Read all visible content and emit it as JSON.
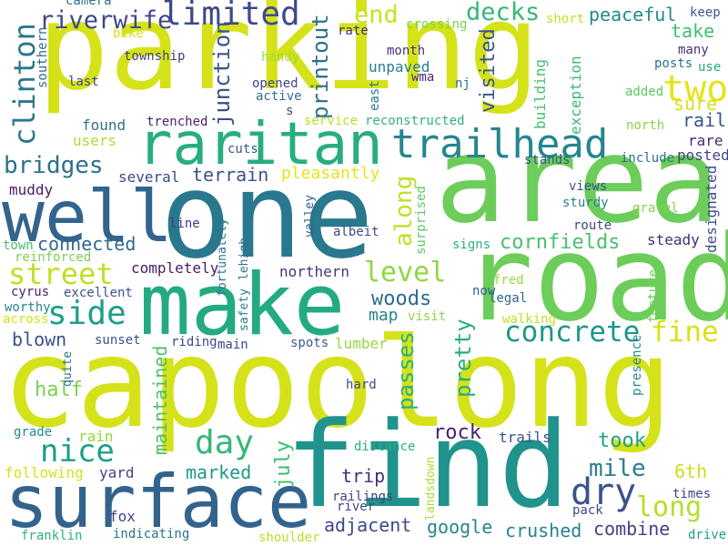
{
  "words": [
    {
      "text": "parking",
      "color": "#d5e21a"
    },
    {
      "text": "capoolong",
      "color": "#d5e21a"
    },
    {
      "text": "area",
      "color": "#6ccd5a"
    },
    {
      "text": "road",
      "color": "#6ccd5a"
    },
    {
      "text": "one",
      "color": "#2a788e"
    },
    {
      "text": "find",
      "color": "#20938c"
    },
    {
      "text": "make",
      "color": "#24aa83"
    },
    {
      "text": "surface",
      "color": "#33638d"
    },
    {
      "text": "well",
      "color": "#32648e"
    },
    {
      "text": "raritan",
      "color": "#27ad81"
    },
    {
      "text": "trailhead",
      "color": "#24868e"
    },
    {
      "text": "two",
      "color": "#e5e419"
    },
    {
      "text": "limited",
      "color": "#3e4a89"
    },
    {
      "text": "riverwife",
      "color": "#3f4788"
    },
    {
      "text": "clinton",
      "color": "#2a788e"
    },
    {
      "text": "bridges",
      "color": "#2d708e"
    },
    {
      "text": "end",
      "color": "#cde11d"
    },
    {
      "text": "decks",
      "color": "#35b779"
    },
    {
      "text": "peaceful",
      "color": "#238a8d"
    },
    {
      "text": "along",
      "color": "#c2df23"
    },
    {
      "text": "street",
      "color": "#c2df23"
    },
    {
      "text": "side",
      "color": "#1f9e89"
    },
    {
      "text": "nice",
      "color": "#1f9e89"
    },
    {
      "text": "level",
      "color": "#8fd744"
    },
    {
      "text": "concrete",
      "color": "#1f968b"
    },
    {
      "text": "fine",
      "color": "#d8e219"
    },
    {
      "text": "day",
      "color": "#35b779"
    },
    {
      "text": "dry",
      "color": "#3b528b"
    },
    {
      "text": "long",
      "color": "#b5de2b"
    },
    {
      "text": "mile",
      "color": "#277f8e"
    },
    {
      "text": "junction",
      "color": "#3b528b"
    },
    {
      "text": "printout",
      "color": "#2c718e"
    },
    {
      "text": "visited",
      "color": "#3a548c"
    },
    {
      "text": "woods",
      "color": "#31688e"
    },
    {
      "text": "cornfields",
      "color": "#4ac16d"
    },
    {
      "text": "passes",
      "color": "#29af7f"
    },
    {
      "text": "pretty",
      "color": "#25ac82"
    },
    {
      "text": "maintained",
      "color": "#4ac16d"
    },
    {
      "text": "connected",
      "color": "#31688e"
    },
    {
      "text": "terrain",
      "color": "#3b528b"
    },
    {
      "text": "pleasantly",
      "color": "#e5e419"
    },
    {
      "text": "several",
      "color": "#3f4889"
    },
    {
      "text": "rock",
      "color": "#482475"
    },
    {
      "text": "took",
      "color": "#1fa188"
    },
    {
      "text": "marked",
      "color": "#1f9a8a"
    },
    {
      "text": "july",
      "color": "#3ebc73"
    },
    {
      "text": "half",
      "color": "#7ad151"
    },
    {
      "text": "map",
      "color": "#26828e"
    },
    {
      "text": "trip",
      "color": "#472d7b"
    },
    {
      "text": "adjacent",
      "color": "#3e4989"
    },
    {
      "text": "google",
      "color": "#24878e"
    },
    {
      "text": "crushed",
      "color": "#26828e"
    },
    {
      "text": "combine",
      "color": "#404387"
    },
    {
      "text": "6th",
      "color": "#c8e020"
    },
    {
      "text": "take",
      "color": "#42be71"
    },
    {
      "text": "sure",
      "color": "#d5e21a"
    },
    {
      "text": "rail",
      "color": "#3a548c"
    },
    {
      "text": "rare",
      "color": "#482878"
    },
    {
      "text": "posted",
      "color": "#414487"
    },
    {
      "text": "blown",
      "color": "#3b528b"
    },
    {
      "text": "found",
      "color": "#2b748e"
    },
    {
      "text": "steady",
      "color": "#472c7a"
    },
    {
      "text": "users",
      "color": "#addc30"
    },
    {
      "text": "northern",
      "color": "#453581"
    },
    {
      "text": "completely",
      "color": "#481a6c"
    },
    {
      "text": "lumber",
      "color": "#97d83f"
    },
    {
      "text": "unpaved",
      "color": "#277e8e"
    },
    {
      "text": "building",
      "color": "#4ac16d"
    },
    {
      "text": "exception",
      "color": "#3bbb75"
    },
    {
      "text": "designated",
      "color": "#3d4d8a"
    },
    {
      "text": "muddy",
      "color": "#481a6c"
    },
    {
      "text": "gravel",
      "color": "#84d44b"
    },
    {
      "text": "views",
      "color": "#3b528b"
    },
    {
      "text": "sturdy",
      "color": "#26818e"
    },
    {
      "text": "route",
      "color": "#414487"
    },
    {
      "text": "signs",
      "color": "#2ab07f"
    },
    {
      "text": "surprised",
      "color": "#5ec962"
    },
    {
      "text": "now",
      "color": "#34618d"
    },
    {
      "text": "legal",
      "color": "#31668e"
    },
    {
      "text": "fred",
      "color": "#9bd93c"
    },
    {
      "text": "walking",
      "color": "#c2df23"
    },
    {
      "text": "visit",
      "color": "#8bd646"
    },
    {
      "text": "feature",
      "color": "#6ece58"
    },
    {
      "text": "presence",
      "color": "#23898e"
    },
    {
      "text": "times",
      "color": "#3f4889"
    },
    {
      "text": "pack",
      "color": "#3f4889"
    },
    {
      "text": "drive",
      "color": "#1f9e89"
    },
    {
      "text": "landsdown",
      "color": "#addc30"
    },
    {
      "text": "river",
      "color": "#3f4889"
    },
    {
      "text": "railings",
      "color": "#424186"
    },
    {
      "text": "distance",
      "color": "#29af7f"
    },
    {
      "text": "trails",
      "color": "#3b528b"
    },
    {
      "text": "hard",
      "color": "#3f4889"
    },
    {
      "text": "camera",
      "color": "#2d708e"
    },
    {
      "text": "bike",
      "color": "#d5e21a"
    },
    {
      "text": "township",
      "color": "#433e85"
    },
    {
      "text": "last",
      "color": "#3e4a89"
    },
    {
      "text": "southern",
      "color": "#31688e"
    },
    {
      "text": "handy",
      "color": "#9fda3a"
    },
    {
      "text": "opened",
      "color": "#404588"
    },
    {
      "text": "active",
      "color": "#2e6f8e"
    },
    {
      "text": "s",
      "color": "#3f4788"
    },
    {
      "text": "trenched",
      "color": "#481f70"
    },
    {
      "text": "cuts",
      "color": "#38588c"
    },
    {
      "text": "service",
      "color": "#bade28"
    },
    {
      "text": "reconstructed",
      "color": "#2db27d"
    },
    {
      "text": "rate",
      "color": "#46307e"
    },
    {
      "text": "month",
      "color": "#46327e"
    },
    {
      "text": "wma",
      "color": "#472c7a"
    },
    {
      "text": "east",
      "color": "#287c8e"
    },
    {
      "text": "nj",
      "color": "#2e6f8e"
    },
    {
      "text": "crossing",
      "color": "#7ad151"
    },
    {
      "text": "short",
      "color": "#c2df23"
    },
    {
      "text": "keep",
      "color": "#375b8d"
    },
    {
      "text": "many",
      "color": "#46337f"
    },
    {
      "text": "posts",
      "color": "#2d718e"
    },
    {
      "text": "use",
      "color": "#24aa83"
    },
    {
      "text": "added",
      "color": "#5ec962"
    },
    {
      "text": "north",
      "color": "#84d44b"
    },
    {
      "text": "include",
      "color": "#2c728e"
    },
    {
      "text": "stands",
      "color": "#3b528b"
    },
    {
      "text": "line",
      "color": "#453781"
    },
    {
      "text": "fortunately",
      "color": "#2d708e"
    },
    {
      "text": "lehigh",
      "color": "#2c728e"
    },
    {
      "text": "valley",
      "color": "#33628d"
    },
    {
      "text": "albeit",
      "color": "#3e4a89"
    },
    {
      "text": "town",
      "color": "#42be71"
    },
    {
      "text": "reinforced",
      "color": "#7ad151"
    },
    {
      "text": "cyrus",
      "color": "#481f70"
    },
    {
      "text": "excellent",
      "color": "#3b528b"
    },
    {
      "text": "worthy",
      "color": "#24878e"
    },
    {
      "text": "across",
      "color": "#d5e21a"
    },
    {
      "text": "safety",
      "color": "#287d8e"
    },
    {
      "text": "sunset",
      "color": "#3b528b"
    },
    {
      "text": "riding",
      "color": "#3f4889"
    },
    {
      "text": "main",
      "color": "#3e4989"
    },
    {
      "text": "spots",
      "color": "#375b8d"
    },
    {
      "text": "quite",
      "color": "#2c728e"
    },
    {
      "text": "grade",
      "color": "#23898e"
    },
    {
      "text": "rain",
      "color": "#95d840"
    },
    {
      "text": "following",
      "color": "#d2e21b"
    },
    {
      "text": "yard",
      "color": "#414487"
    },
    {
      "text": "fox",
      "color": "#3f4889"
    },
    {
      "text": "indicating",
      "color": "#2c728e"
    },
    {
      "text": "franklin",
      "color": "#2db27d"
    },
    {
      "text": "shoulder",
      "color": "#bade28"
    }
  ]
}
